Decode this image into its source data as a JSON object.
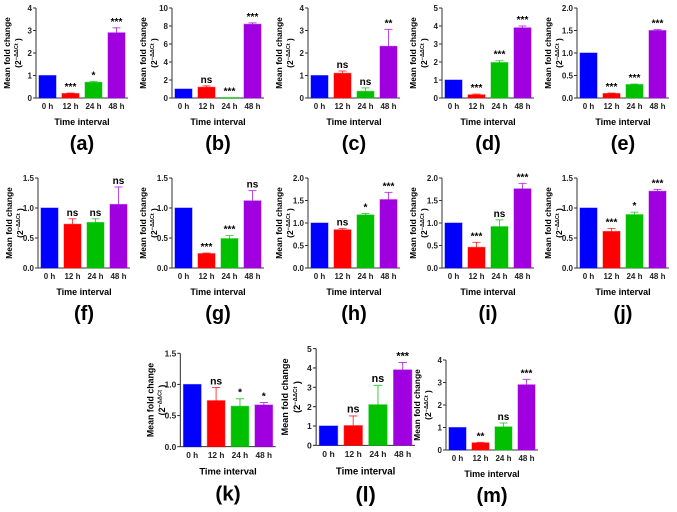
{
  "colors": {
    "0h": "#0000ff",
    "12h": "#ff0000",
    "24h": "#00c000",
    "48h": "#a000e0",
    "axis": "#333333"
  },
  "chart_data": [
    {
      "id": "a",
      "caption": "(a)",
      "type": "bar",
      "categories": [
        "0 h",
        "12 h",
        "24 h",
        "48 h"
      ],
      "values": [
        1,
        0.2,
        0.7,
        2.9
      ],
      "error_top": [
        1,
        0.22,
        0.74,
        3.12
      ],
      "significance": [
        "",
        "***",
        "*",
        "***"
      ],
      "ylim": [
        0,
        4
      ],
      "yticks": [
        "0",
        "1",
        "2",
        "3",
        "4"
      ],
      "xlabel": "Time interval",
      "ylabel": "Mean fold change",
      "ylabel_unit_base": "2",
      "ylabel_unit_exp": "−ΔΔCt"
    },
    {
      "id": "b",
      "caption": "(b)",
      "type": "bar",
      "categories": [
        "0 h",
        "12 h",
        "24 h",
        "48 h"
      ],
      "values": [
        1,
        1.2,
        0.05,
        8.2
      ],
      "error_top": [
        1,
        1.35,
        0.05,
        8.35
      ],
      "significance": [
        "",
        "ns",
        "***",
        "***"
      ],
      "ylim": [
        0,
        10
      ],
      "yticks": [
        "0",
        "2",
        "4",
        "6",
        "8",
        "10"
      ],
      "xlabel": "Time interval",
      "ylabel": "Mean fold change",
      "ylabel_unit_base": "2",
      "ylabel_unit_exp": "−ΔΔCt"
    },
    {
      "id": "c",
      "caption": "(c)",
      "type": "bar",
      "categories": [
        "0 h",
        "12 h",
        "24 h",
        "48 h"
      ],
      "values": [
        1,
        1.1,
        0.3,
        2.3
      ],
      "error_top": [
        1,
        1.2,
        0.45,
        3.05
      ],
      "significance": [
        "",
        "ns",
        "ns",
        "**"
      ],
      "ylim": [
        0,
        4
      ],
      "yticks": [
        "0",
        "1",
        "2",
        "3",
        "4"
      ],
      "xlabel": "Time interval",
      "ylabel": "Mean fold change",
      "ylabel_unit_base": "2",
      "ylabel_unit_exp": "−ΔΔCt"
    },
    {
      "id": "d",
      "caption": "(d)",
      "type": "bar",
      "categories": [
        "0 h",
        "12 h",
        "24 h",
        "48 h"
      ],
      "values": [
        1,
        0.18,
        1.97,
        3.9
      ],
      "error_top": [
        1,
        0.22,
        2.07,
        4.0
      ],
      "significance": [
        "",
        "***",
        "***",
        "***"
      ],
      "ylim": [
        0,
        5
      ],
      "yticks": [
        "0",
        "1",
        "2",
        "3",
        "4",
        "5"
      ],
      "xlabel": "Time interval",
      "ylabel": "Mean fold change",
      "ylabel_unit_base": "2",
      "ylabel_unit_exp": "−ΔΔCt"
    },
    {
      "id": "e",
      "caption": "(e)",
      "type": "bar",
      "categories": [
        "0 h",
        "12 h",
        "24 h",
        "48 h"
      ],
      "values": [
        1,
        0.1,
        0.3,
        1.5
      ],
      "error_top": [
        1,
        0.11,
        0.31,
        1.52
      ],
      "significance": [
        "",
        "***",
        "***",
        "***"
      ],
      "ylim": [
        0,
        2
      ],
      "yticks": [
        "0.0",
        "0.5",
        "1.0",
        "1.5",
        "2.0"
      ],
      "xlabel": "Time interval",
      "ylabel": "Mean fold change",
      "ylabel_unit_base": "2",
      "ylabel_unit_exp": "−ΔΔCt"
    },
    {
      "id": "f",
      "caption": "(f)",
      "type": "bar",
      "categories": [
        "0 h",
        "12 h",
        "24 h",
        "48 h"
      ],
      "values": [
        1,
        0.73,
        0.76,
        1.06
      ],
      "error_top": [
        1,
        0.82,
        0.82,
        1.35
      ],
      "significance": [
        "",
        "ns",
        "ns",
        "ns"
      ],
      "ylim": [
        0,
        1.5
      ],
      "yticks": [
        "0.0",
        "0.5",
        "1.0",
        "1.5"
      ],
      "xlabel": "Time interval",
      "ylabel": "Mean fold change",
      "ylabel_unit_base": "2",
      "ylabel_unit_exp": "−ΔΔCt"
    },
    {
      "id": "g",
      "caption": "(g)",
      "type": "bar",
      "categories": [
        "0 h",
        "12 h",
        "24 h",
        "48 h"
      ],
      "values": [
        1,
        0.24,
        0.49,
        1.12
      ],
      "error_top": [
        1,
        0.25,
        0.54,
        1.29
      ],
      "significance": [
        "",
        "***",
        "***",
        "ns"
      ],
      "ylim": [
        0,
        1.5
      ],
      "yticks": [
        "0.0",
        "0.5",
        "1.0",
        "1.5"
      ],
      "xlabel": "Time interval",
      "ylabel": "Mean fold change",
      "ylabel_unit_base": "2",
      "ylabel_unit_exp": "−ΔΔCt"
    },
    {
      "id": "h",
      "caption": "(h)",
      "type": "bar",
      "categories": [
        "0 h",
        "12 h",
        "24 h",
        "48 h"
      ],
      "values": [
        1,
        0.85,
        1.18,
        1.52
      ],
      "error_top": [
        1,
        0.88,
        1.21,
        1.68
      ],
      "significance": [
        "",
        "ns",
        "*",
        "***"
      ],
      "ylim": [
        0,
        2
      ],
      "yticks": [
        "0.0",
        "0.5",
        "1.0",
        "1.5",
        "2.0"
      ],
      "xlabel": "Time interval",
      "ylabel": "Mean fold change",
      "ylabel_unit_base": "2",
      "ylabel_unit_exp": "−ΔΔCt"
    },
    {
      "id": "i",
      "caption": "(i)",
      "type": "bar",
      "categories": [
        "0 h",
        "12 h",
        "24 h",
        "48 h"
      ],
      "values": [
        1,
        0.46,
        0.92,
        1.76
      ],
      "error_top": [
        1,
        0.57,
        1.07,
        1.88
      ],
      "significance": [
        "",
        "***",
        "ns",
        "***"
      ],
      "ylim": [
        0,
        2
      ],
      "yticks": [
        "0.0",
        "0.5",
        "1.0",
        "1.5",
        "2.0"
      ],
      "xlabel": "Time interval",
      "ylabel": "Mean fold change",
      "ylabel_unit_base": "2",
      "ylabel_unit_exp": "−ΔΔCt"
    },
    {
      "id": "j",
      "caption": "(j)",
      "type": "bar",
      "categories": [
        "0 h",
        "12 h",
        "24 h",
        "48 h"
      ],
      "values": [
        1,
        0.61,
        0.89,
        1.28
      ],
      "error_top": [
        1,
        0.66,
        0.93,
        1.31
      ],
      "significance": [
        "",
        "***",
        "*",
        "***"
      ],
      "ylim": [
        0,
        1.5
      ],
      "yticks": [
        "0.0",
        "0.5",
        "1.0",
        "1.5"
      ],
      "xlabel": "Time interval",
      "ylabel": "Mean fold change",
      "ylabel_unit_base": "2",
      "ylabel_unit_exp": "−ΔΔCt"
    },
    {
      "id": "k",
      "caption": "(k)",
      "type": "bar",
      "categories": [
        "0 h",
        "12 h",
        "24 h",
        "48 h"
      ],
      "values": [
        1,
        0.74,
        0.65,
        0.67
      ],
      "error_top": [
        1,
        0.95,
        0.77,
        0.71
      ],
      "significance": [
        "",
        "ns",
        "*",
        "*"
      ],
      "ylim": [
        0,
        1.5
      ],
      "yticks": [
        "0.0",
        "0.5",
        "1.0",
        "1.5"
      ],
      "xlabel": "Time interval",
      "ylabel": "Mean fold change",
      "ylabel_unit_base": "2",
      "ylabel_unit_exp": "−ΔΔCt"
    },
    {
      "id": "l",
      "caption": "(l)",
      "type": "bar",
      "categories": [
        "0 h",
        "12 h",
        "24 h",
        "48 h"
      ],
      "values": [
        1,
        1.02,
        2.1,
        3.9
      ],
      "error_top": [
        1,
        1.52,
        3.1,
        4.28
      ],
      "significance": [
        "",
        "ns",
        "ns",
        "***"
      ],
      "ylim": [
        0,
        5
      ],
      "yticks": [
        "0",
        "1",
        "2",
        "3",
        "4",
        "5"
      ],
      "xlabel": "Time interval",
      "ylabel": "Mean fold change",
      "ylabel_unit_base": "2",
      "ylabel_unit_exp": "−ΔΔCt"
    },
    {
      "id": "m",
      "caption": "(m)",
      "type": "bar",
      "categories": [
        "0 h",
        "12 h",
        "24 h",
        "48 h"
      ],
      "values": [
        1,
        0.32,
        1.03,
        2.9
      ],
      "error_top": [
        1,
        0.34,
        1.2,
        3.14
      ],
      "significance": [
        "",
        "**",
        "ns",
        "***"
      ],
      "ylim": [
        0,
        4
      ],
      "yticks": [
        "0",
        "1",
        "2",
        "3",
        "4"
      ],
      "xlabel": "Time interval",
      "ylabel": "Mean fold change",
      "ylabel_unit_base": "2",
      "ylabel_unit_exp": "−ΔΔCt"
    }
  ]
}
